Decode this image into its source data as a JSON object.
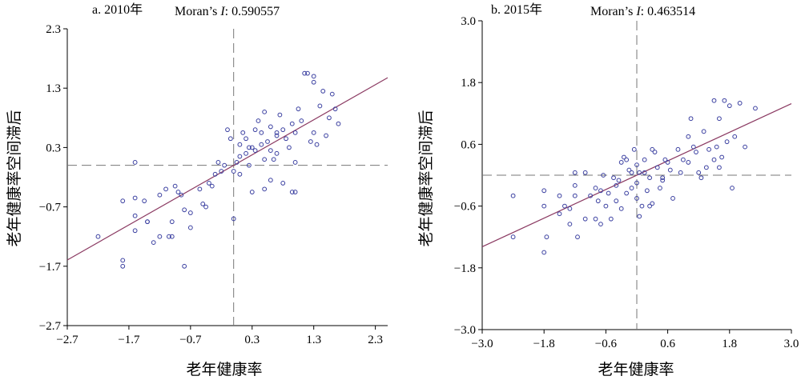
{
  "chart_data": [
    {
      "type": "scatter",
      "panel_label": "a. 2010年",
      "stat_label": "Moran’s",
      "stat_symbol": "I",
      "stat_value": ": 0.590557",
      "xlabel": "老年健康率",
      "ylabel": "老年健康率空间滞后",
      "xlim": [
        -2.7,
        2.5
      ],
      "ylim": [
        -2.7,
        2.3
      ],
      "xticks": [
        -2.7,
        -1.7,
        -0.7,
        0.3,
        1.3,
        2.3
      ],
      "xtick_labels": [
        "−2.7",
        "−1.7",
        "−0.7",
        "0.3",
        "1.3",
        "2.3"
      ],
      "yticks": [
        -2.7,
        -1.7,
        -0.7,
        0.3,
        1.3,
        2.3
      ],
      "ytick_labels": [
        "−2.7",
        "−1.7",
        "−0.7",
        "0.3",
        "1.3",
        "2.3"
      ],
      "mean_x": 0.0,
      "mean_y": 0.0,
      "fit_line": {
        "slope": 0.5906,
        "intercept": 0.0
      },
      "line_color": "#8b3a62",
      "point_color": "#3a3fa0",
      "points": [
        [
          -2.2,
          -1.2
        ],
        [
          -1.8,
          -1.6
        ],
        [
          -1.8,
          -1.7
        ],
        [
          -1.8,
          -0.6
        ],
        [
          -1.6,
          -0.55
        ],
        [
          -1.6,
          -0.85
        ],
        [
          -1.45,
          -0.6
        ],
        [
          -1.4,
          -0.95
        ],
        [
          -1.4,
          -0.95
        ],
        [
          -1.6,
          0.05
        ],
        [
          -1.6,
          -1.1
        ],
        [
          -1.3,
          -1.3
        ],
        [
          -1.2,
          -1.2
        ],
        [
          -1.2,
          -0.5
        ],
        [
          -1.1,
          -0.4
        ],
        [
          -1.05,
          -1.2
        ],
        [
          -1.0,
          -1.2
        ],
        [
          -1.0,
          -0.95
        ],
        [
          -0.95,
          -0.35
        ],
        [
          -0.9,
          -0.45
        ],
        [
          -0.85,
          -0.5
        ],
        [
          -0.8,
          -0.75
        ],
        [
          -0.8,
          -1.7
        ],
        [
          -0.7,
          -1.05
        ],
        [
          -0.7,
          -0.8
        ],
        [
          -0.55,
          -0.4
        ],
        [
          -0.5,
          -0.65
        ],
        [
          -0.45,
          -0.7
        ],
        [
          -0.4,
          -0.3
        ],
        [
          -0.35,
          -0.35
        ],
        [
          -0.3,
          -0.15
        ],
        [
          -0.25,
          0.05
        ],
        [
          -0.15,
          0.0
        ],
        [
          -0.1,
          0.6
        ],
        [
          -0.05,
          0.45
        ],
        [
          0.0,
          -0.1
        ],
        [
          0.05,
          0.05
        ],
        [
          0.1,
          -0.15
        ],
        [
          0.1,
          0.15
        ],
        [
          0.15,
          0.55
        ],
        [
          0.2,
          0.45
        ],
        [
          0.2,
          0.2
        ],
        [
          0.25,
          0.0
        ],
        [
          0.3,
          0.3
        ],
        [
          0.35,
          0.25
        ],
        [
          0.35,
          0.6
        ],
        [
          0.4,
          0.75
        ],
        [
          0.45,
          0.55
        ],
        [
          0.45,
          0.35
        ],
        [
          0.5,
          0.1
        ],
        [
          0.5,
          0.9
        ],
        [
          0.55,
          0.4
        ],
        [
          0.6,
          0.65
        ],
        [
          0.6,
          0.25
        ],
        [
          0.65,
          0.1
        ],
        [
          0.7,
          0.2
        ],
        [
          0.7,
          0.5
        ],
        [
          0.75,
          0.85
        ],
        [
          0.8,
          0.6
        ],
        [
          0.85,
          0.45
        ],
        [
          0.9,
          0.3
        ],
        [
          0.95,
          0.7
        ],
        [
          1.0,
          0.55
        ],
        [
          1.0,
          0.05
        ],
        [
          1.05,
          0.95
        ],
        [
          1.1,
          0.75
        ],
        [
          1.15,
          1.55
        ],
        [
          1.2,
          1.55
        ],
        [
          1.25,
          0.4
        ],
        [
          1.3,
          0.55
        ],
        [
          1.35,
          0.35
        ],
        [
          1.4,
          1.0
        ],
        [
          1.45,
          1.25
        ],
        [
          1.5,
          0.5
        ],
        [
          1.55,
          0.8
        ],
        [
          1.6,
          1.2
        ],
        [
          1.65,
          0.95
        ],
        [
          1.7,
          0.7
        ],
        [
          1.3,
          1.5
        ],
        [
          0.5,
          -0.4
        ],
        [
          0.3,
          -0.45
        ],
        [
          0.6,
          -0.25
        ],
        [
          0.95,
          -0.45
        ],
        [
          1.0,
          -0.45
        ],
        [
          0.8,
          -0.3
        ],
        [
          0.0,
          -0.9
        ],
        [
          -0.2,
          -0.1
        ],
        [
          0.1,
          0.35
        ],
        [
          0.25,
          0.3
        ],
        [
          1.3,
          1.4
        ],
        [
          0.7,
          0.55
        ]
      ]
    },
    {
      "type": "scatter",
      "panel_label": "b. 2015年",
      "stat_label": "Moran’s",
      "stat_symbol": "I",
      "stat_value": ": 0.463514",
      "xlabel": "老年健康率",
      "ylabel": "老年健康率空间滞后",
      "xlim": [
        -3.0,
        3.0
      ],
      "ylim": [
        -3.0,
        3.0
      ],
      "xticks": [
        -3.0,
        -1.8,
        -0.6,
        0.6,
        1.8,
        3.0
      ],
      "xtick_labels": [
        "−3.0",
        "−1.8",
        "−0.6",
        "0.6",
        "1.8",
        "3.0"
      ],
      "yticks": [
        -3.0,
        -1.8,
        -0.6,
        0.6,
        1.8,
        3.0
      ],
      "ytick_labels": [
        "−3.0",
        "−1.8",
        "−0.6",
        "0.6",
        "1.8",
        "3.0"
      ],
      "mean_x": 0.0,
      "mean_y": 0.0,
      "fit_line": {
        "slope": 0.4635,
        "intercept": 0.0
      },
      "line_color": "#8b3a62",
      "point_color": "#3a3fa0",
      "points": [
        [
          -2.4,
          -0.4
        ],
        [
          -2.4,
          -1.2
        ],
        [
          -1.8,
          -1.5
        ],
        [
          -1.8,
          -0.6
        ],
        [
          -1.75,
          -1.2
        ],
        [
          -1.8,
          -0.3
        ],
        [
          -1.5,
          -0.4
        ],
        [
          -1.5,
          -0.75
        ],
        [
          -1.4,
          -0.6
        ],
        [
          -1.3,
          -0.65
        ],
        [
          -1.3,
          -0.95
        ],
        [
          -1.2,
          -0.4
        ],
        [
          -1.2,
          -0.2
        ],
        [
          -1.15,
          -1.2
        ],
        [
          -1.0,
          -0.85
        ],
        [
          -1.0,
          0.05
        ],
        [
          -0.9,
          -0.4
        ],
        [
          -0.8,
          -0.85
        ],
        [
          -0.75,
          -0.5
        ],
        [
          -0.7,
          -0.3
        ],
        [
          -0.7,
          -0.95
        ],
        [
          -0.6,
          -0.6
        ],
        [
          -0.55,
          -0.35
        ],
        [
          -0.5,
          -0.85
        ],
        [
          -0.45,
          -0.05
        ],
        [
          -0.4,
          -0.5
        ],
        [
          -0.4,
          -0.2
        ],
        [
          -0.3,
          -0.65
        ],
        [
          -0.3,
          0.25
        ],
        [
          -0.25,
          0.35
        ],
        [
          -0.2,
          0.3
        ],
        [
          -0.2,
          -0.35
        ],
        [
          -0.15,
          0.1
        ],
        [
          -0.1,
          -0.25
        ],
        [
          -0.1,
          0.05
        ],
        [
          -0.05,
          0.5
        ],
        [
          0.0,
          -0.15
        ],
        [
          0.0,
          0.2
        ],
        [
          0.05,
          -0.8
        ],
        [
          0.05,
          0.05
        ],
        [
          0.1,
          -0.6
        ],
        [
          0.15,
          0.05
        ],
        [
          0.2,
          -0.3
        ],
        [
          0.25,
          -0.05
        ],
        [
          0.3,
          -0.55
        ],
        [
          0.35,
          0.45
        ],
        [
          0.4,
          0.15
        ],
        [
          0.45,
          -0.25
        ],
        [
          0.5,
          -0.1
        ],
        [
          0.55,
          0.3
        ],
        [
          0.6,
          0.25
        ],
        [
          0.65,
          0.1
        ],
        [
          0.7,
          -0.45
        ],
        [
          0.8,
          0.5
        ],
        [
          0.85,
          0.05
        ],
        [
          0.9,
          0.3
        ],
        [
          1.0,
          0.25
        ],
        [
          1.0,
          0.75
        ],
        [
          1.05,
          1.1
        ],
        [
          1.1,
          0.55
        ],
        [
          1.15,
          0.45
        ],
        [
          1.2,
          0.05
        ],
        [
          1.25,
          -0.05
        ],
        [
          1.3,
          0.85
        ],
        [
          1.35,
          0.15
        ],
        [
          1.4,
          0.5
        ],
        [
          1.5,
          0.3
        ],
        [
          1.55,
          0.55
        ],
        [
          1.6,
          1.1
        ],
        [
          1.6,
          0.15
        ],
        [
          1.65,
          0.35
        ],
        [
          1.7,
          1.45
        ],
        [
          1.75,
          0.65
        ],
        [
          1.8,
          1.35
        ],
        [
          1.85,
          -0.25
        ],
        [
          1.9,
          0.75
        ],
        [
          2.0,
          1.4
        ],
        [
          2.1,
          0.55
        ],
        [
          2.3,
          1.3
        ],
        [
          1.5,
          1.45
        ],
        [
          -0.65,
          0.0
        ],
        [
          0.0,
          -0.45
        ],
        [
          -1.2,
          0.05
        ],
        [
          -0.8,
          -0.25
        ],
        [
          0.3,
          0.5
        ],
        [
          0.5,
          -0.05
        ],
        [
          -0.35,
          -0.1
        ],
        [
          0.15,
          0.3
        ],
        [
          0.25,
          -0.6
        ]
      ]
    }
  ]
}
